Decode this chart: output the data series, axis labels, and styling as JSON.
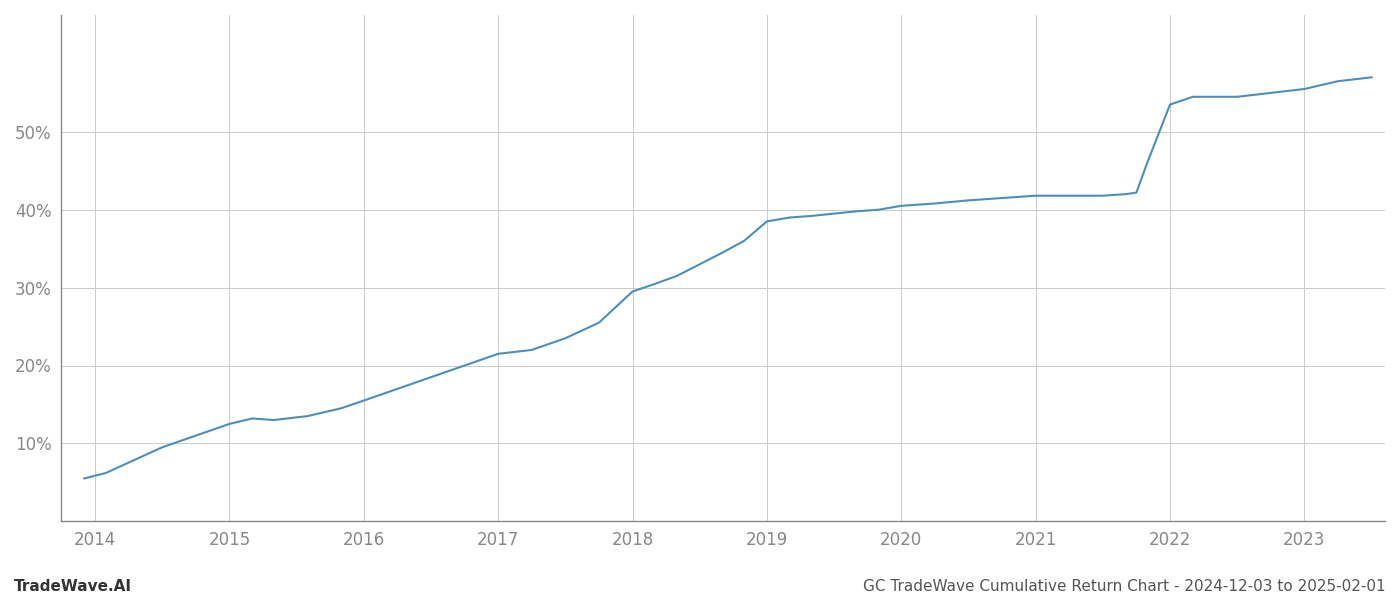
{
  "title": "GC TradeWave Cumulative Return Chart - 2024-12-03 to 2025-02-01",
  "watermark": "TradeWave.AI",
  "line_color": "#4d8fbb",
  "background_color": "#ffffff",
  "grid_color": "#cccccc",
  "x_years": [
    2013.92,
    2014.08,
    2014.5,
    2015.0,
    2015.17,
    2015.33,
    2015.58,
    2015.83,
    2016.0,
    2016.25,
    2016.5,
    2016.75,
    2017.0,
    2017.25,
    2017.5,
    2017.75,
    2018.0,
    2018.17,
    2018.33,
    2018.5,
    2018.67,
    2018.83,
    2019.0,
    2019.17,
    2019.33,
    2019.5,
    2019.67,
    2019.83,
    2020.0,
    2020.25,
    2020.5,
    2020.75,
    2021.0,
    2021.25,
    2021.5,
    2021.67,
    2021.75,
    2021.83,
    2022.0,
    2022.17,
    2022.33,
    2022.5,
    2022.75,
    2023.0,
    2023.25,
    2023.5
  ],
  "y_values": [
    5.5,
    6.2,
    9.5,
    12.5,
    13.2,
    13.0,
    13.5,
    14.5,
    15.5,
    17.0,
    18.5,
    20.0,
    21.5,
    22.0,
    23.5,
    25.5,
    29.5,
    30.5,
    31.5,
    33.0,
    34.5,
    36.0,
    38.5,
    39.0,
    39.2,
    39.5,
    39.8,
    40.0,
    40.5,
    40.8,
    41.2,
    41.5,
    41.8,
    41.8,
    41.8,
    42.0,
    42.2,
    46.0,
    53.5,
    54.5,
    54.5,
    54.5,
    55.0,
    55.5,
    56.5,
    57.0
  ],
  "xtick_years": [
    2014,
    2015,
    2016,
    2017,
    2018,
    2019,
    2020,
    2021,
    2022,
    2023
  ],
  "ytick_values": [
    10,
    20,
    30,
    40,
    50
  ],
  "ytick_labels": [
    "10%",
    "20%",
    "30%",
    "40%",
    "50%"
  ],
  "xlim": [
    2013.75,
    2023.6
  ],
  "ylim": [
    0,
    65
  ],
  "line_width": 1.5,
  "tick_color": "#888888",
  "spine_color": "#888888",
  "title_color": "#555555",
  "watermark_color": "#333333",
  "title_fontsize": 11,
  "watermark_fontsize": 11,
  "tick_fontsize": 12
}
